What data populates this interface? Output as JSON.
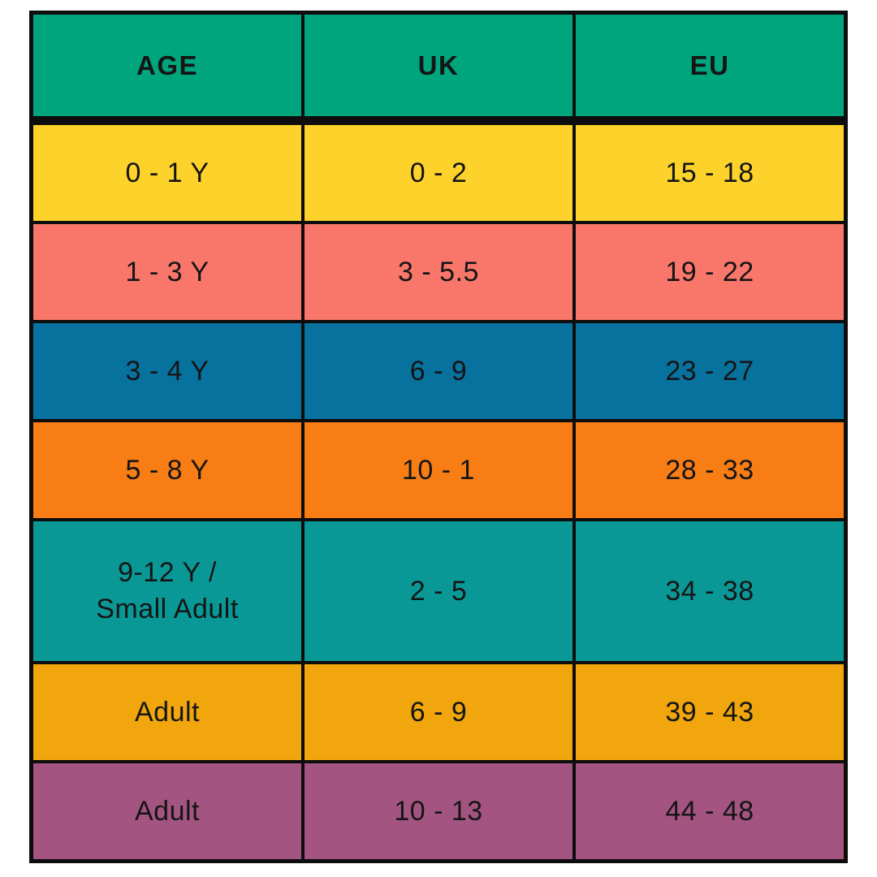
{
  "chart_data": {
    "type": "table",
    "columns": [
      "AGE",
      "UK",
      "EU"
    ],
    "header_color": "#00A57E",
    "border_color": "#0d0d0d",
    "text_color": "#151515",
    "rows": [
      {
        "age": "0 - 1 Y",
        "uk": "0 - 2",
        "eu": "15 - 18",
        "color": "#FDD32B"
      },
      {
        "age": "1 - 3 Y",
        "uk": "3 - 5.5",
        "eu": "19 - 22",
        "color": "#F9766B"
      },
      {
        "age": "3 - 4 Y",
        "uk": "6 - 9",
        "eu": "23 - 27",
        "color": "#08729E"
      },
      {
        "age": "5 - 8 Y",
        "uk": "10 - 1",
        "eu": "28 - 33",
        "color": "#F87D15"
      },
      {
        "age": "9-12 Y /\nSmall Adult",
        "uk": "2 - 5",
        "eu": "34 - 38",
        "color": "#0A9896"
      },
      {
        "age": "Adult",
        "uk": "6 - 9",
        "eu": "39 - 43",
        "color": "#F0A60C"
      },
      {
        "age": "Adult",
        "uk": "10 - 13",
        "eu": "44 - 48",
        "color": "#A45480"
      }
    ]
  }
}
